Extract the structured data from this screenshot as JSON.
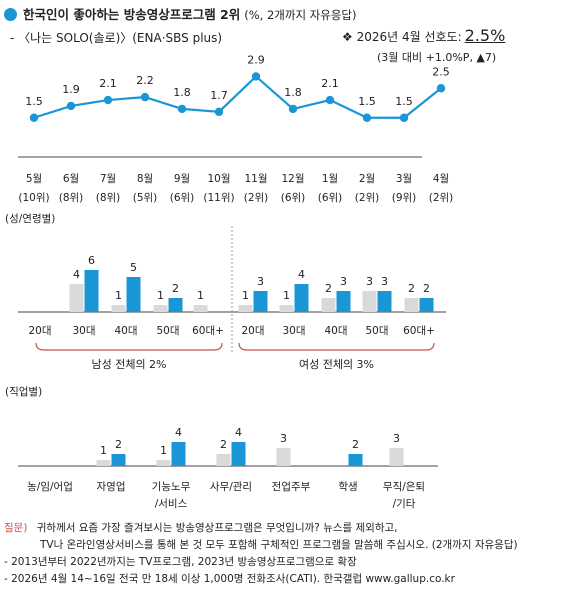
{
  "header": {
    "title": "한국인이 좋아하는 방송영상프로그램 2위",
    "title_note": "(%, 2개까지 자유응답)",
    "subtitle": "- 〈나는 SOLO(솔로)〉(ENA·SBS plus)",
    "preference_label": "❖ 2026년 4월 선호도:",
    "preference_value": "2.5%",
    "preference_change": "(3월 대비 +1.0%P, ▲7)"
  },
  "colors": {
    "accent": "#1a96d6",
    "light": "#d9d9d9",
    "bracket": "#c9504a",
    "question": "#c9504a"
  },
  "chart_data": [
    {
      "type": "line",
      "title": "",
      "categories": [
        "5월",
        "6월",
        "7월",
        "8월",
        "9월",
        "10월",
        "11월",
        "12월",
        "1월",
        "2월",
        "3월",
        "4월"
      ],
      "ranks": [
        "(10위)",
        "(8위)",
        "(8위)",
        "(5위)",
        "(6위)",
        "(11위)",
        "(2위)",
        "(6위)",
        "(6위)",
        "(2위)",
        "(9위)",
        "(2위)"
      ],
      "values": [
        1.5,
        1.9,
        2.1,
        2.2,
        1.8,
        1.7,
        2.9,
        1.8,
        2.1,
        1.5,
        1.5,
        2.5
      ]
    },
    {
      "type": "bar",
      "section_label": "(성/연령별)",
      "groups": [
        {
          "label": "남성 전체의 2%",
          "categories": [
            "20대",
            "30대",
            "40대",
            "50대",
            "60대+"
          ],
          "series": [
            {
              "values": [
                null,
                4,
                1,
                1,
                1
              ]
            },
            {
              "values": [
                null,
                6,
                5,
                2,
                null
              ]
            }
          ]
        },
        {
          "label": "여성 전체의 3%",
          "categories": [
            "20대",
            "30대",
            "40대",
            "50대",
            "60대+"
          ],
          "series": [
            {
              "values": [
                1,
                1,
                2,
                3,
                2
              ]
            },
            {
              "values": [
                3,
                4,
                3,
                3,
                2
              ]
            }
          ]
        }
      ]
    },
    {
      "type": "bar",
      "section_label": "(직업별)",
      "categories": [
        "농/임/어업",
        "자영업",
        "기능노무/서비스",
        "사무/관리",
        "전업주부",
        "학생",
        "무직/은퇴/기타"
      ],
      "category_lines": [
        [
          "농/임/어업"
        ],
        [
          "자영업"
        ],
        [
          "기능노무",
          "/서비스"
        ],
        [
          "사무/관리"
        ],
        [
          "전업주부"
        ],
        [
          "학생"
        ],
        [
          "무직/은퇴",
          "/기타"
        ]
      ],
      "series": [
        {
          "values": [
            null,
            1,
            1,
            2,
            3,
            null,
            3
          ]
        },
        {
          "values": [
            null,
            2,
            4,
            4,
            null,
            2,
            null
          ]
        }
      ]
    }
  ],
  "footer": {
    "question_label": "질문)",
    "question_line1": "귀하께서 요즘 가장 즐겨보시는 방송영상프로그램은 무엇입니까? 뉴스를 제외하고,",
    "question_line2": "TV나 온라인영상서비스를 통해 본 것 모두 포함해 구체적인 프로그램을 말씀해 주십시오. (2개까지 자유응답)",
    "note1": "- 2013년부터 2022년까지는 TV프로그램, 2023년 방송영상프로그램으로 확장",
    "note2": "- 2026년 4월 14~16일 전국 만 18세 이상 1,000명 전화조사(CATI). 한국갤럽 www.gallup.co.kr"
  }
}
